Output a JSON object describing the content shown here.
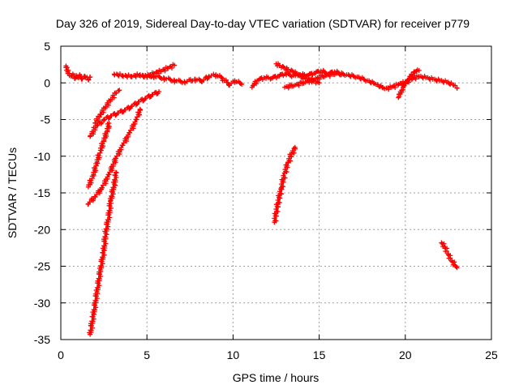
{
  "chart_data": {
    "type": "scatter",
    "title": "Day 326 of 2019, Sidereal Day-to-day VTEC variation (SDTVAR) for receiver p779",
    "xlabel": "GPS time / hours",
    "ylabel": "SDTVAR / TECUs",
    "xlim": [
      0,
      25
    ],
    "ylim": [
      -35,
      5
    ],
    "xticks": [
      0,
      5,
      10,
      15,
      20,
      25
    ],
    "yticks": [
      5,
      0,
      -5,
      -10,
      -15,
      -20,
      -25,
      -30,
      -35
    ],
    "grid": true,
    "marker": "+",
    "color": "#ff0000",
    "series": [
      {
        "values": [
          [
            0.3,
            2.3
          ],
          [
            0.4,
            1.5
          ],
          [
            0.5,
            1.0
          ],
          [
            0.6,
            0.9
          ],
          [
            0.7,
            1.2
          ],
          [
            0.8,
            0.6
          ],
          [
            0.9,
            1.0
          ],
          [
            1.0,
            0.7
          ],
          [
            1.1,
            1.1
          ],
          [
            1.2,
            0.5
          ],
          [
            1.4,
            0.9
          ],
          [
            1.6,
            0.4
          ],
          [
            1.7,
            0.8
          ]
        ]
      },
      {
        "values": [
          [
            3.1,
            1.2
          ],
          [
            3.6,
            1.0
          ],
          [
            4.1,
            0.9
          ],
          [
            4.6,
            1.1
          ],
          [
            5.0,
            0.8
          ],
          [
            5.4,
            1.3
          ],
          [
            5.8,
            1.6
          ],
          [
            6.2,
            2.0
          ],
          [
            6.6,
            2.4
          ]
        ]
      },
      {
        "values": [
          [
            4.8,
            1.0
          ],
          [
            5.4,
            0.9
          ],
          [
            6.0,
            0.6
          ],
          [
            6.6,
            0.3
          ],
          [
            7.2,
            0.1
          ],
          [
            7.8,
            0.5
          ],
          [
            8.2,
            0.2
          ],
          [
            8.6,
            0.9
          ],
          [
            9.0,
            1.1
          ],
          [
            9.4,
            0.6
          ],
          [
            9.8,
            -0.3
          ],
          [
            10.1,
            0.3
          ],
          [
            10.5,
            -0.2
          ]
        ]
      },
      {
        "values": [
          [
            11.1,
            -0.6
          ],
          [
            11.4,
            0.3
          ],
          [
            11.8,
            0.7
          ],
          [
            12.2,
            0.6
          ],
          [
            12.6,
            0.9
          ],
          [
            13.0,
            1.2
          ],
          [
            13.5,
            1.0
          ],
          [
            13.9,
            1.1
          ],
          [
            14.3,
            1.0
          ],
          [
            14.7,
            1.3
          ],
          [
            15.1,
            1.6
          ],
          [
            15.5,
            1.2
          ],
          [
            15.9,
            1.5
          ],
          [
            16.3,
            1.1
          ]
        ]
      },
      {
        "values": [
          [
            12.5,
            2.6
          ],
          [
            13.0,
            2.0
          ],
          [
            13.5,
            1.5
          ],
          [
            14.0,
            0.8
          ],
          [
            14.5,
            0.3
          ],
          [
            15.0,
            0.0
          ]
        ]
      },
      {
        "values": [
          [
            13.0,
            -0.6
          ],
          [
            13.6,
            -0.3
          ],
          [
            14.2,
            0.1
          ],
          [
            14.8,
            0.6
          ],
          [
            15.4,
            1.0
          ],
          [
            16.0,
            1.3
          ],
          [
            16.6,
            1.1
          ],
          [
            17.2,
            0.8
          ],
          [
            17.8,
            0.3
          ],
          [
            18.3,
            -0.2
          ],
          [
            18.8,
            -0.8
          ],
          [
            19.2,
            -0.6
          ],
          [
            19.6,
            -0.2
          ],
          [
            20.0,
            0.1
          ],
          [
            20.4,
            0.6
          ],
          [
            20.8,
            0.9
          ],
          [
            21.2,
            0.7
          ],
          [
            21.6,
            0.5
          ],
          [
            22.0,
            0.3
          ],
          [
            22.4,
            0.1
          ],
          [
            22.8,
            -0.3
          ],
          [
            23.0,
            -0.7
          ]
        ]
      },
      {
        "values": [
          [
            19.6,
            -2.0
          ],
          [
            19.9,
            -0.5
          ],
          [
            20.2,
            0.5
          ],
          [
            20.5,
            1.5
          ],
          [
            20.8,
            1.7
          ]
        ]
      },
      {
        "values": [
          [
            1.7,
            -7.3
          ],
          [
            2.1,
            -5.8
          ],
          [
            2.5,
            -5.0
          ],
          [
            2.9,
            -4.5
          ],
          [
            3.3,
            -4.1
          ],
          [
            3.7,
            -3.7
          ],
          [
            4.1,
            -3.2
          ],
          [
            4.5,
            -2.6
          ],
          [
            4.9,
            -2.1
          ],
          [
            5.3,
            -1.6
          ],
          [
            5.7,
            -1.2
          ]
        ]
      },
      {
        "values": [
          [
            2.0,
            -5.5
          ],
          [
            2.3,
            -4.3
          ],
          [
            2.6,
            -3.3
          ],
          [
            2.9,
            -2.3
          ],
          [
            3.2,
            -1.4
          ],
          [
            3.4,
            -1.0
          ]
        ]
      },
      {
        "values": [
          [
            1.6,
            -16.5
          ],
          [
            2.0,
            -15.5
          ],
          [
            2.4,
            -14.3
          ],
          [
            2.8,
            -12.5
          ],
          [
            3.2,
            -10.3
          ],
          [
            3.6,
            -8.5
          ],
          [
            4.0,
            -6.8
          ],
          [
            4.4,
            -5.0
          ],
          [
            4.6,
            -3.6
          ]
        ]
      },
      {
        "values": [
          [
            1.6,
            -14.2
          ],
          [
            1.9,
            -12.5
          ],
          [
            2.1,
            -10.8
          ],
          [
            2.3,
            -9.2
          ],
          [
            2.5,
            -7.8
          ],
          [
            2.7,
            -6.5
          ],
          [
            2.8,
            -5.5
          ]
        ]
      },
      {
        "values": [
          [
            1.7,
            -34.3
          ],
          [
            1.9,
            -31.5
          ],
          [
            2.1,
            -28.5
          ],
          [
            2.3,
            -25.5
          ],
          [
            2.5,
            -22.8
          ],
          [
            2.6,
            -20.5
          ],
          [
            2.8,
            -18.0
          ],
          [
            2.9,
            -16.0
          ],
          [
            3.1,
            -13.8
          ],
          [
            3.2,
            -12.2
          ]
        ]
      },
      {
        "values": [
          [
            12.4,
            -19.0
          ],
          [
            12.6,
            -16.5
          ],
          [
            12.8,
            -14.3
          ],
          [
            13.0,
            -12.3
          ],
          [
            13.2,
            -10.8
          ],
          [
            13.4,
            -9.7
          ],
          [
            13.6,
            -8.8
          ]
        ]
      },
      {
        "values": [
          [
            22.1,
            -21.8
          ],
          [
            22.3,
            -22.4
          ],
          [
            22.5,
            -23.4
          ],
          [
            22.7,
            -24.3
          ],
          [
            22.9,
            -24.9
          ],
          [
            23.0,
            -25.2
          ]
        ]
      }
    ]
  }
}
